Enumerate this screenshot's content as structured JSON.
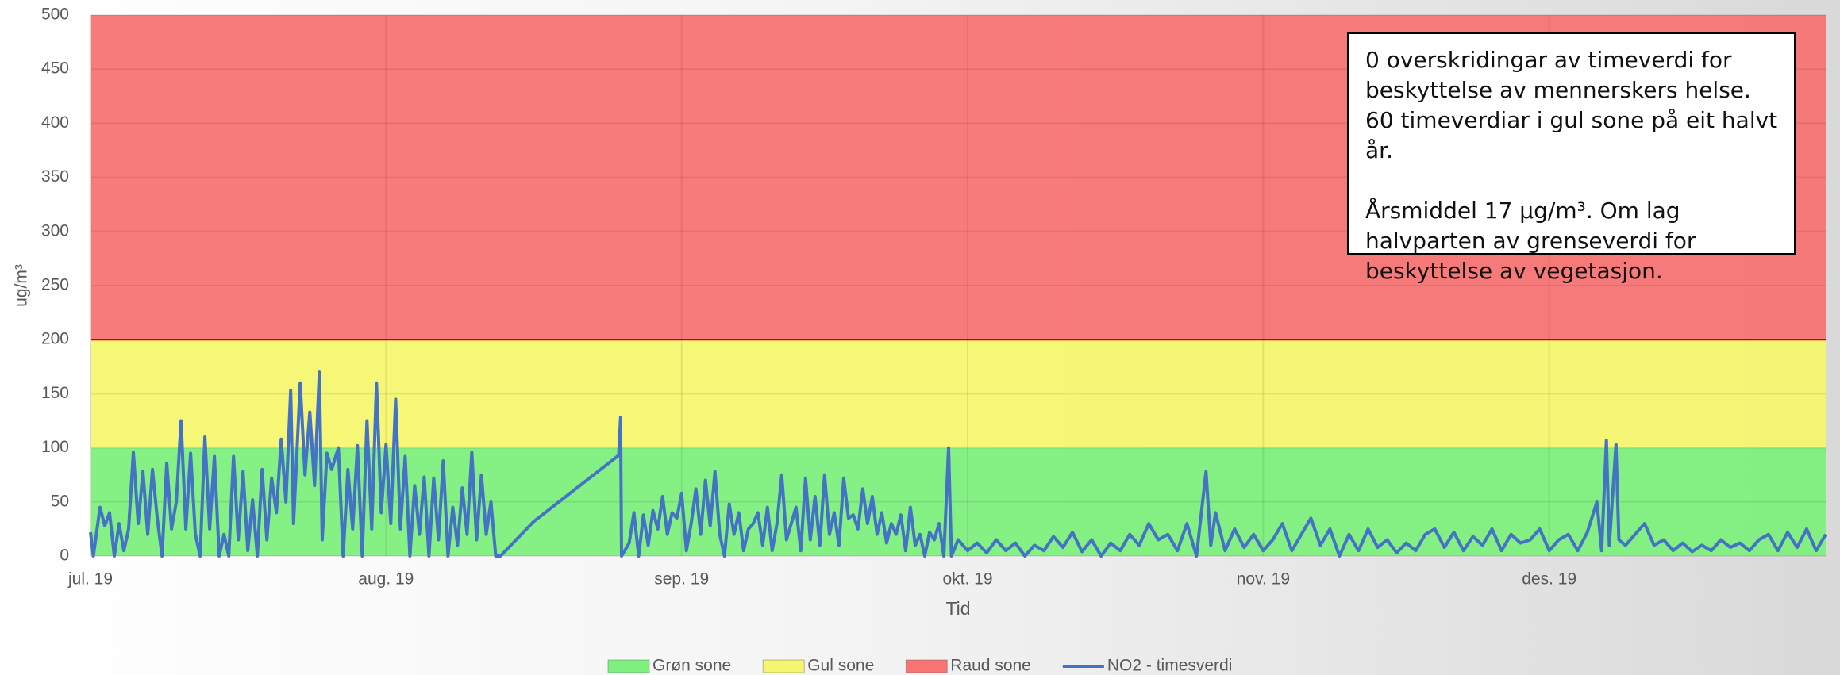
{
  "chart_data": {
    "type": "line",
    "y_label": "ug/m³",
    "x_label": "Tid",
    "ylim": [
      0,
      500
    ],
    "yticks": [
      0,
      50,
      100,
      150,
      200,
      250,
      300,
      350,
      400,
      450,
      500
    ],
    "xlim": [
      0,
      182
    ],
    "xticks": [
      {
        "value": 0,
        "label": "jul. 19"
      },
      {
        "value": 31,
        "label": "aug. 19"
      },
      {
        "value": 62,
        "label": "sep. 19"
      },
      {
        "value": 92,
        "label": "okt. 19"
      },
      {
        "value": 123,
        "label": "nov. 19"
      },
      {
        "value": 153,
        "label": "des. 19"
      }
    ],
    "grid": true,
    "legend": "bottom",
    "bands": [
      {
        "name": "Grøn sone",
        "color": "#7ef07e",
        "value": 100
      },
      {
        "name": "Gul sone",
        "color": "#f6f570",
        "value": 100
      },
      {
        "name": "Raud sone",
        "color": "#f87474",
        "value": 300
      }
    ],
    "series": [
      {
        "name": "NO2 - timesverdi",
        "color": "#4472c4",
        "x": [
          0,
          0.3,
          1,
          1.5,
          2,
          2.5,
          3,
          3.5,
          4,
          4.5,
          5,
          5.5,
          6,
          6.5,
          7,
          7.5,
          8,
          8.5,
          9,
          9.5,
          10,
          10.5,
          11,
          11.5,
          12,
          12.5,
          13,
          13.5,
          14,
          14.5,
          15,
          15.5,
          16,
          16.5,
          17,
          17.5,
          18,
          18.5,
          19,
          19.5,
          20,
          20.5,
          21,
          21.3,
          22,
          22.5,
          23,
          23.5,
          24,
          24.3,
          24.8,
          25.3,
          26,
          26.5,
          27,
          27.5,
          28,
          28.5,
          29,
          29.5,
          30,
          30.5,
          31,
          31.5,
          32,
          32.5,
          33,
          33.5,
          34,
          34.5,
          35,
          35.5,
          36,
          36.5,
          37,
          37.5,
          38,
          38.5,
          39,
          39.5,
          40,
          40.5,
          41,
          41.5,
          42,
          42.5,
          43,
          46.5,
          55.4,
          55.6,
          55.7,
          56.5,
          57,
          57.5,
          58,
          58.5,
          59,
          59.5,
          60,
          60.5,
          61,
          61.5,
          62,
          62.5,
          63,
          63.5,
          64,
          64.5,
          65,
          65.5,
          66,
          66.5,
          67,
          67.5,
          68,
          68.5,
          69,
          69.5,
          70,
          70.5,
          71,
          71.5,
          72,
          72.5,
          73,
          73.5,
          74,
          74.5,
          75,
          75.5,
          76,
          76.5,
          77,
          77.5,
          78,
          78.5,
          79,
          79.5,
          80,
          80.5,
          81,
          81.5,
          82,
          82.5,
          83,
          83.5,
          84,
          84.5,
          85,
          85.5,
          86,
          86.5,
          87,
          87.5,
          88,
          88.5,
          89,
          89.5,
          90,
          90.3,
          91,
          92,
          93,
          94,
          95,
          96,
          97,
          98,
          99,
          100,
          101,
          102,
          103,
          104,
          105,
          106,
          107,
          108,
          109,
          110,
          111,
          112,
          113,
          114,
          115,
          116,
          117,
          117.5,
          118,
          119,
          120,
          121,
          122,
          123,
          124,
          125,
          126,
          127,
          128,
          129,
          130,
          131,
          132,
          133,
          134,
          135,
          136,
          137,
          138,
          139,
          140,
          141,
          142,
          143,
          144,
          145,
          146,
          147,
          148,
          149,
          150,
          151,
          152,
          153,
          154,
          155,
          156,
          157,
          158,
          158.5,
          159,
          159.3,
          160,
          160.3,
          161,
          162,
          163,
          164,
          165,
          166,
          167,
          168,
          169,
          170,
          171,
          172,
          173,
          174,
          175,
          176,
          177,
          178,
          179,
          180,
          181,
          182
        ],
        "values": [
          22,
          0,
          45,
          28,
          40,
          0,
          30,
          5,
          25,
          96,
          30,
          78,
          20,
          80,
          35,
          0,
          86,
          25,
          50,
          125,
          25,
          95,
          20,
          0,
          110,
          25,
          92,
          0,
          20,
          0,
          92,
          15,
          78,
          5,
          52,
          0,
          80,
          15,
          72,
          40,
          108,
          50,
          153,
          30,
          160,
          75,
          133,
          65,
          170,
          15,
          95,
          80,
          100,
          0,
          80,
          25,
          102,
          0,
          125,
          25,
          160,
          40,
          103,
          30,
          145,
          25,
          92,
          0,
          65,
          20,
          73,
          0,
          72,
          15,
          88,
          0,
          45,
          10,
          63,
          20,
          96,
          15,
          75,
          20,
          50,
          0,
          0,
          32,
          93,
          128,
          0,
          12,
          40,
          0,
          38,
          10,
          42,
          25,
          55,
          20,
          40,
          35,
          58,
          5,
          30,
          62,
          20,
          70,
          28,
          78,
          20,
          0,
          48,
          20,
          40,
          5,
          25,
          30,
          40,
          10,
          45,
          5,
          30,
          75,
          15,
          30,
          45,
          5,
          72,
          15,
          55,
          10,
          75,
          20,
          40,
          10,
          72,
          35,
          38,
          25,
          62,
          30,
          55,
          20,
          40,
          12,
          30,
          20,
          38,
          5,
          45,
          10,
          20,
          0,
          22,
          15,
          30,
          0,
          100,
          0,
          15,
          5,
          12,
          3,
          15,
          5,
          12,
          0,
          10,
          5,
          18,
          8,
          22,
          4,
          15,
          0,
          12,
          5,
          20,
          10,
          30,
          15,
          20,
          5,
          30,
          0,
          78,
          10,
          40,
          5,
          25,
          8,
          20,
          5,
          15,
          30,
          5,
          20,
          35,
          10,
          25,
          0,
          20,
          5,
          25,
          8,
          15,
          3,
          12,
          5,
          20,
          25,
          8,
          22,
          5,
          18,
          10,
          25,
          5,
          20,
          12,
          15,
          25,
          5,
          15,
          20,
          5,
          22,
          50,
          5,
          107,
          10,
          103,
          15,
          10,
          20,
          30,
          10,
          15,
          5,
          12,
          4,
          10,
          5,
          15,
          8,
          12,
          5,
          15,
          20,
          5,
          22,
          8,
          25,
          5,
          20
        ]
      }
    ],
    "annotation": [
      "0 overskridingar av timeverdi for beskyttelse av mennerskers helse. 60 timeverdiar i gul sone på eit halvt år.",
      "Årsmiddel 17 µg/m³. Om lag halvparten av grenseverdi for beskyttelse av vegetasjon."
    ]
  }
}
